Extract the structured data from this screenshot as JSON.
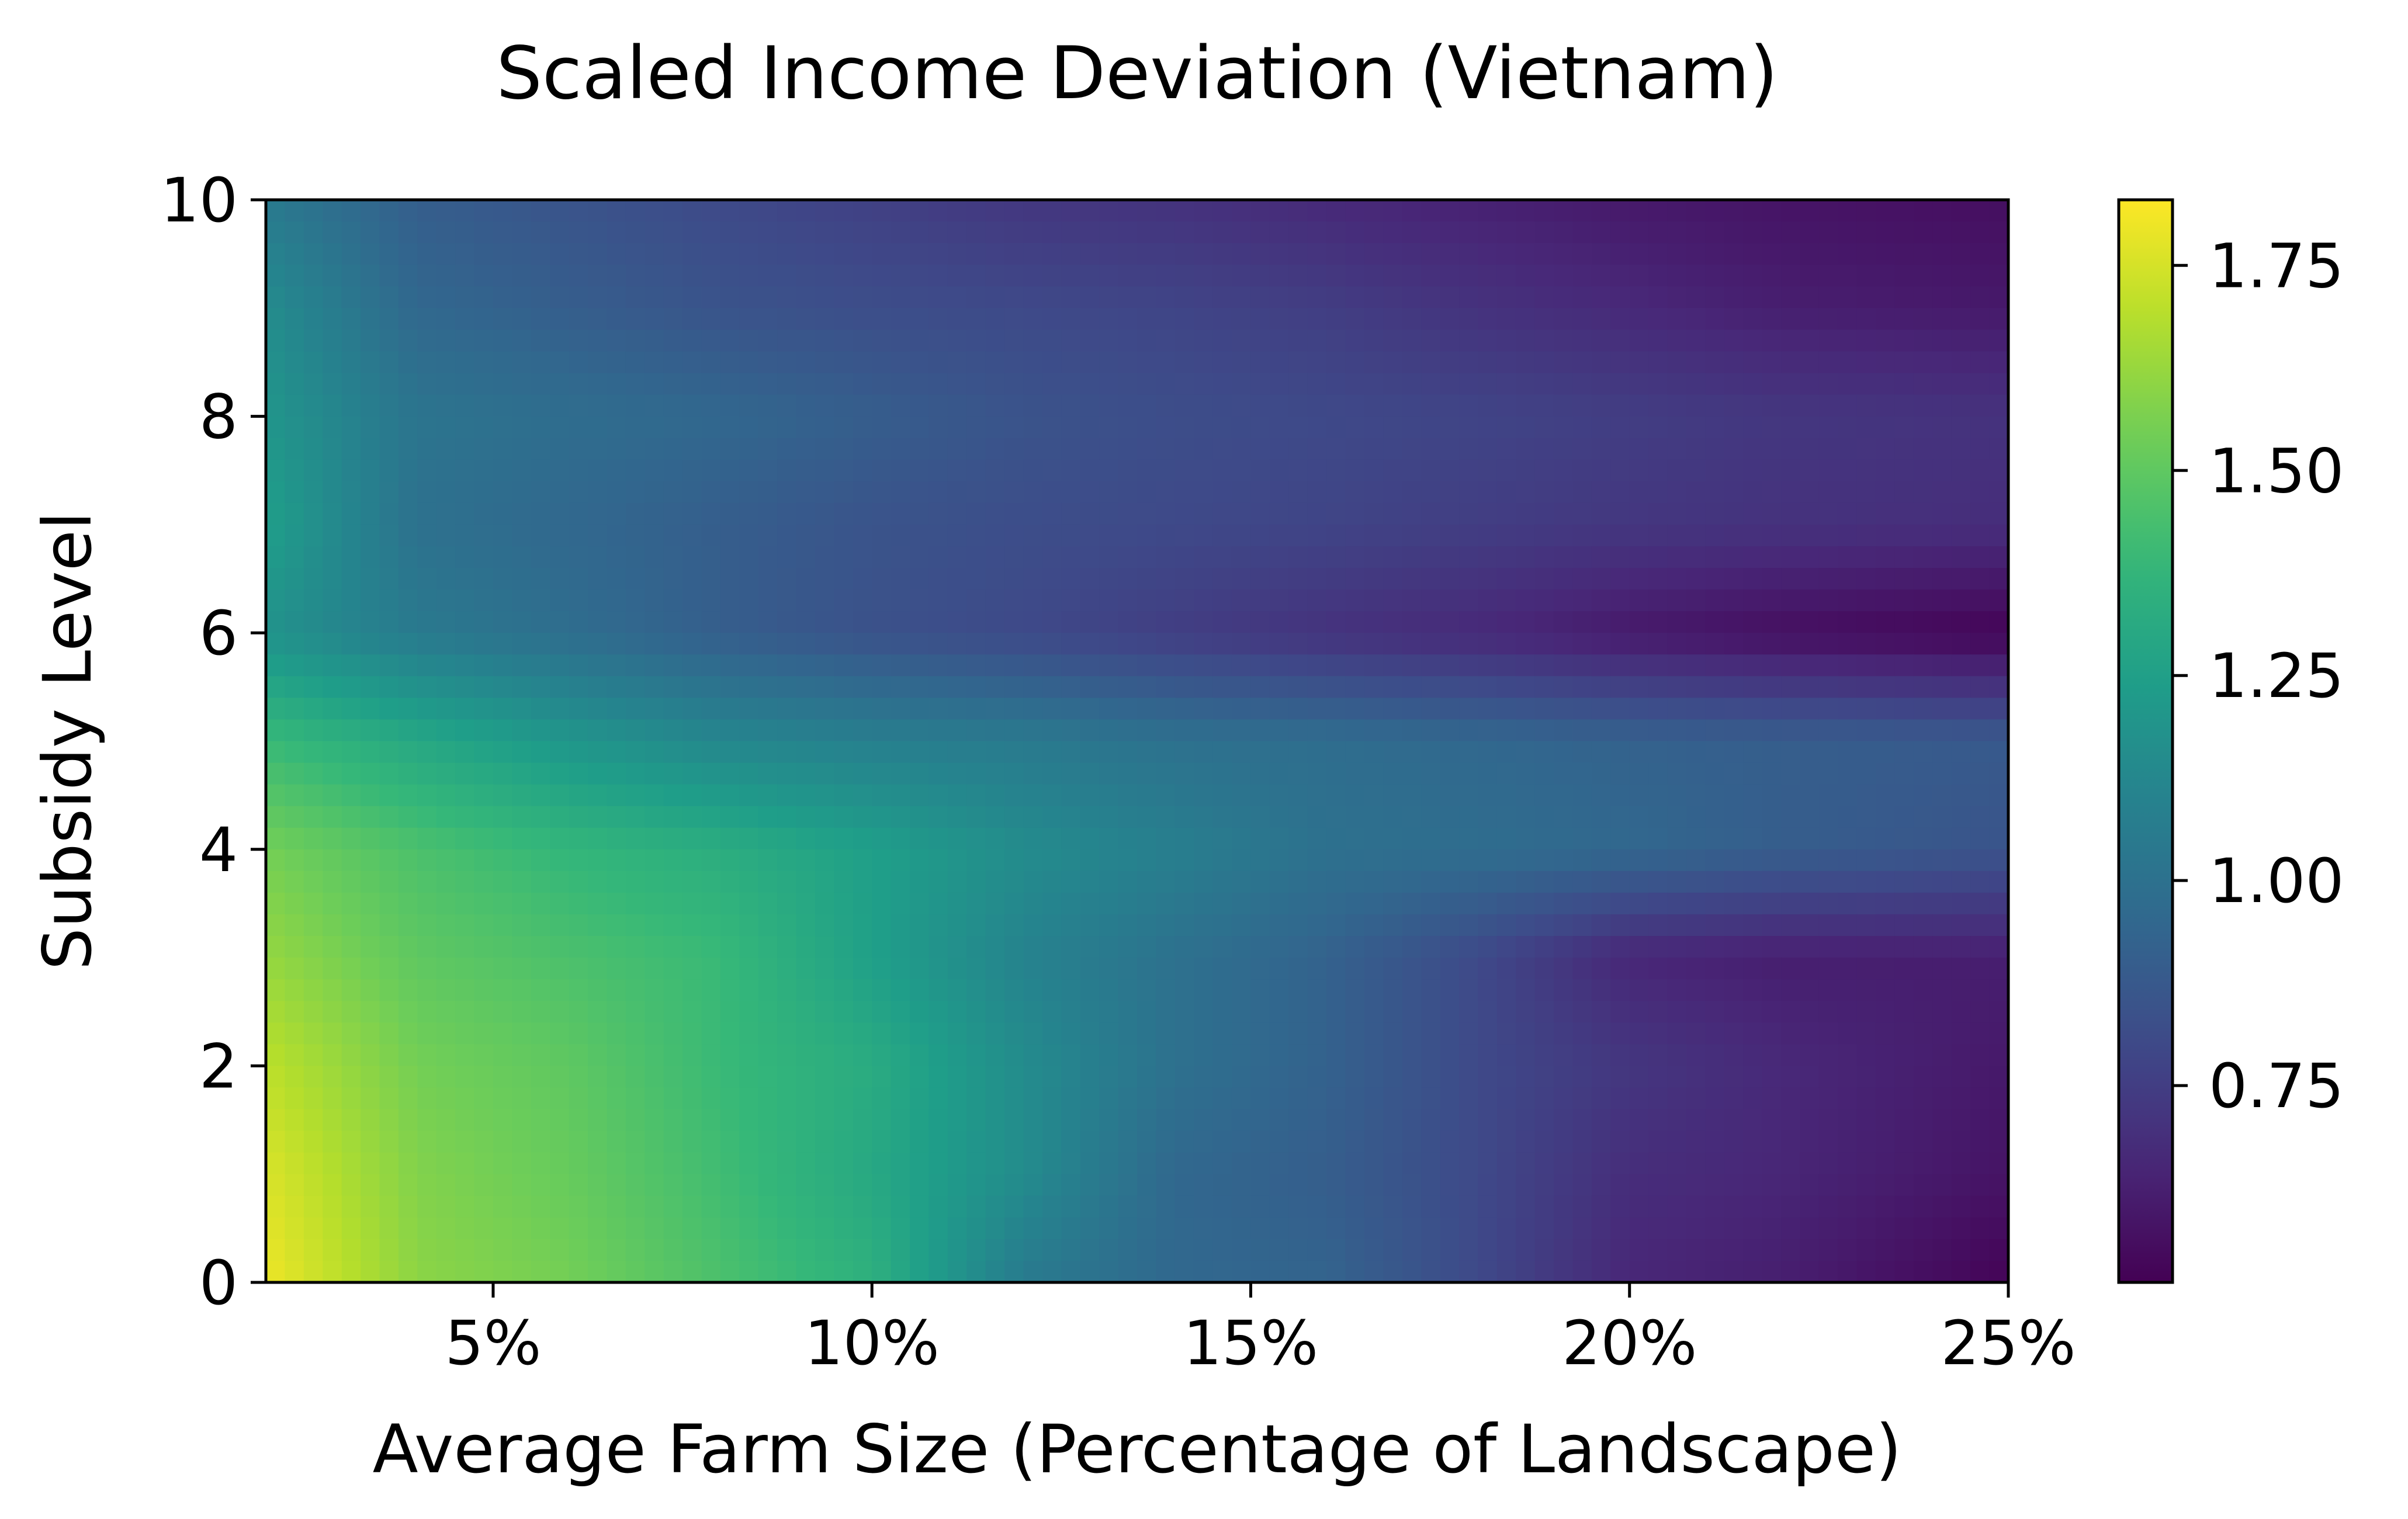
{
  "chart_data": {
    "type": "heatmap",
    "title": "Scaled Income Deviation (Vietnam)",
    "xlabel": "Average Farm Size (Percentage of Landscape)",
    "ylabel": "Subsidy Level",
    "colormap": "viridis",
    "xlim": [
      2,
      25
    ],
    "ylim": [
      0,
      10
    ],
    "color_range": [
      0.51,
      1.83
    ],
    "x_ticks": [
      5,
      10,
      15,
      20,
      25
    ],
    "x_tick_labels": [
      "5%",
      "10%",
      "15%",
      "20%",
      "25%"
    ],
    "y_ticks": [
      0,
      2,
      4,
      6,
      8,
      10
    ],
    "y_tick_labels": [
      "0",
      "2",
      "4",
      "6",
      "8",
      "10"
    ],
    "colorbar_ticks": [
      0.75,
      1.0,
      1.25,
      1.5,
      1.75
    ],
    "colorbar_tick_labels": [
      "0.75",
      "1.00",
      "1.25",
      "1.50",
      "1.75"
    ],
    "grid": false,
    "x": [
      2,
      4,
      6,
      8,
      10,
      12,
      14,
      16,
      18,
      20,
      22,
      25
    ],
    "y": [
      0,
      1,
      2,
      3,
      4,
      5,
      6,
      7,
      8,
      9,
      10
    ],
    "z": [
      [
        1.8,
        1.6,
        1.55,
        1.45,
        1.35,
        1.05,
        0.95,
        0.93,
        0.8,
        0.65,
        0.62,
        0.52
      ],
      [
        1.76,
        1.58,
        1.52,
        1.42,
        1.3,
        1.15,
        0.95,
        0.9,
        0.8,
        0.68,
        0.65,
        0.58
      ],
      [
        1.7,
        1.55,
        1.5,
        1.4,
        1.32,
        1.15,
        1.0,
        0.92,
        0.8,
        0.72,
        0.66,
        0.6
      ],
      [
        1.62,
        1.5,
        1.45,
        1.4,
        1.25,
        1.1,
        1.0,
        0.92,
        0.8,
        0.65,
        0.62,
        0.62
      ],
      [
        1.55,
        1.45,
        1.38,
        1.33,
        1.25,
        1.15,
        1.08,
        1.0,
        0.98,
        0.95,
        0.9,
        0.85
      ],
      [
        1.4,
        1.3,
        1.2,
        1.12,
        1.08,
        1.05,
        1.0,
        0.98,
        0.95,
        0.92,
        0.9,
        0.88
      ],
      [
        1.18,
        1.05,
        0.98,
        0.9,
        0.84,
        0.8,
        0.75,
        0.7,
        0.66,
        0.6,
        0.56,
        0.52
      ],
      [
        1.25,
        1.0,
        0.95,
        0.9,
        0.85,
        0.82,
        0.8,
        0.78,
        0.75,
        0.72,
        0.7,
        0.68
      ],
      [
        1.2,
        1.02,
        0.98,
        0.95,
        0.9,
        0.85,
        0.82,
        0.8,
        0.78,
        0.75,
        0.72,
        0.7
      ],
      [
        1.15,
        0.95,
        0.9,
        0.85,
        0.82,
        0.8,
        0.78,
        0.75,
        0.7,
        0.66,
        0.62,
        0.6
      ],
      [
        1.05,
        0.9,
        0.85,
        0.8,
        0.76,
        0.72,
        0.7,
        0.66,
        0.63,
        0.6,
        0.58,
        0.56
      ]
    ]
  }
}
